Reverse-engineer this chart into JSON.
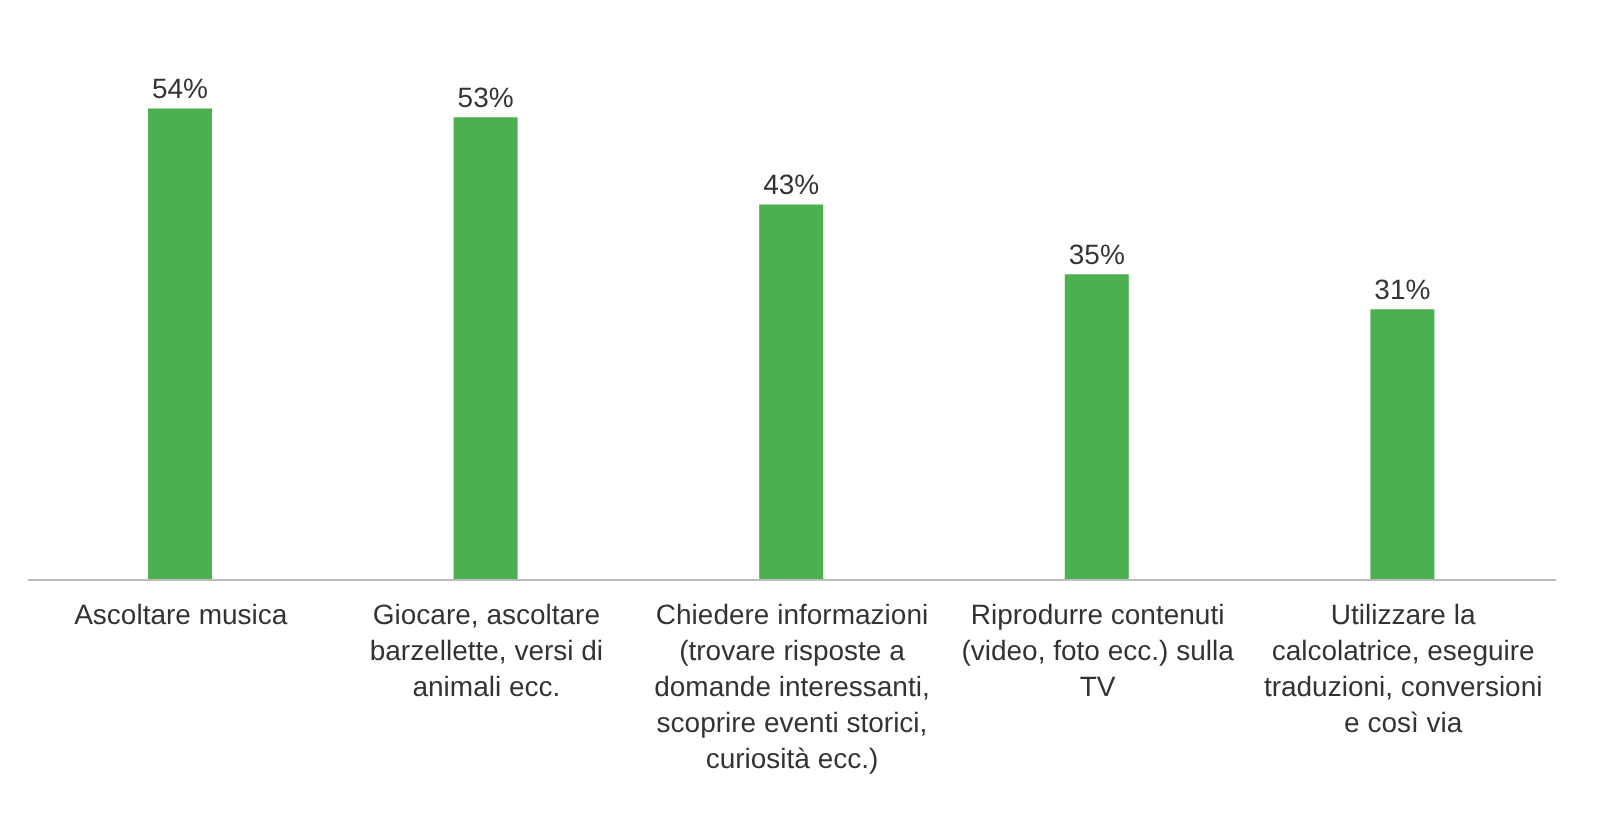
{
  "chart_data": {
    "type": "bar",
    "categories": [
      "Ascoltare musica",
      "Giocare, ascoltare barzellette, versi di animali ecc.",
      "Chiedere informazioni (trovare risposte a domande interessanti, scoprire eventi storici, curiosità ecc.)",
      "Riprodurre contenuti (video, foto ecc.) sulla TV",
      "Utilizzare la calcolatrice, eseguire traduzioni, conversioni e così via"
    ],
    "values": [
      54,
      53,
      43,
      35,
      31
    ],
    "value_labels": [
      "54%",
      "53%",
      "43%",
      "35%",
      "31%"
    ],
    "color": "#4caf50",
    "grid": false
  }
}
